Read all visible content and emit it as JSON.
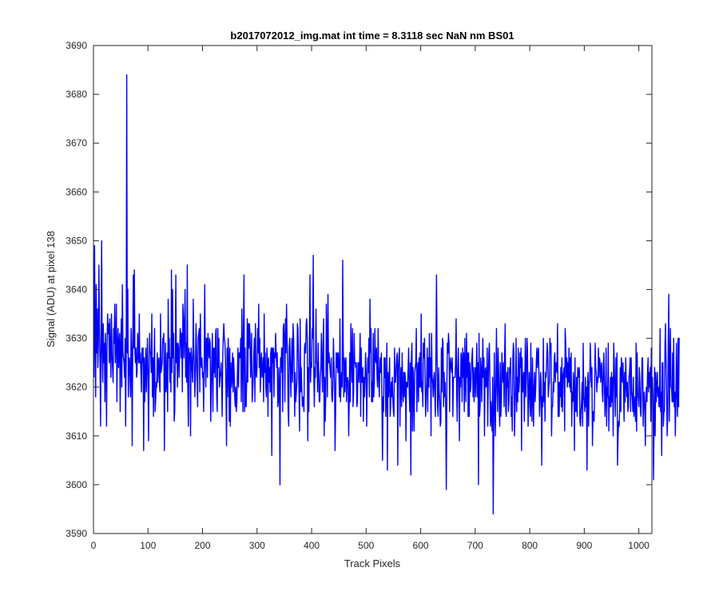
{
  "chart_data": {
    "type": "line",
    "title": "b2017072012_img.mat int time = 8.3118 sec  NaN nm BS01",
    "xlabel": "Track Pixels",
    "ylabel": "Signal (ADU) at pixel 138",
    "xlim": [
      0,
      1024
    ],
    "ylim": [
      3590,
      3690
    ],
    "xticks": [
      0,
      100,
      200,
      300,
      400,
      500,
      600,
      700,
      800,
      900,
      1000
    ],
    "yticks": [
      3590,
      3600,
      3610,
      3620,
      3630,
      3640,
      3650,
      3660,
      3670,
      3680,
      3690
    ],
    "grid": false,
    "line_color": "#0000ff",
    "series": [
      {
        "x_start": 1,
        "x_step": 1,
        "noise_level": 3624,
        "noise_sd": 6.5,
        "y": [
          3622,
          3649,
          3631,
          3618,
          3641,
          3627,
          3636,
          3624,
          3629,
          3645,
          3632,
          3625,
          3612,
          3630,
          3650,
          3627,
          3621,
          3633,
          3625,
          3629,
          3617,
          3631,
          3626,
          3612,
          3629,
          3635,
          3631,
          3633,
          3625,
          3634,
          3627,
          3622,
          3635,
          3627,
          3624,
          3621,
          3632,
          3629,
          3637,
          3625,
          3629,
          3637,
          3617,
          3628,
          3632,
          3624,
          3629,
          3631,
          3615,
          3628,
          3634,
          3620,
          3641,
          3627,
          3626,
          3625,
          3622,
          3630,
          3612,
          3626,
          3684,
          3627,
          3640,
          3618,
          3625,
          3626,
          3622,
          3618,
          3632,
          3627,
          3608,
          3628,
          3643,
          3628,
          3644,
          3627,
          3625,
          3628,
          3622,
          3623,
          3631,
          3627,
          3625,
          3635,
          3625,
          3627,
          3623,
          3619,
          3628,
          3625,
          3628,
          3607,
          3626,
          3617,
          3623,
          3628,
          3619,
          3624,
          3630,
          3622,
          3609,
          3623,
          3631,
          3627,
          3627,
          3623,
          3635,
          3618,
          3626,
          3614,
          3624,
          3632,
          3615,
          3617,
          3621,
          3620,
          3627,
          3621,
          3625,
          3626,
          3621,
          3619,
          3635,
          3623,
          3624,
          3625,
          3630,
          3629,
          3631,
          3607,
          3622,
          3629,
          3619,
          3621,
          3627,
          3615,
          3638,
          3626,
          3630,
          3621,
          3626,
          3619,
          3644,
          3623,
          3640,
          3626,
          3631,
          3613,
          3615,
          3624,
          3643,
          3625,
          3629,
          3620,
          3629,
          3628,
          3622,
          3627,
          3632,
          3631,
          3626,
          3631,
          3619,
          3637,
          3634,
          3626,
          3632,
          3640,
          3622,
          3629,
          3621,
          3645,
          3620,
          3612,
          3628,
          3625,
          3627,
          3610,
          3628,
          3626,
          3623,
          3621,
          3638,
          3628,
          3624,
          3618,
          3623,
          3633,
          3628,
          3621,
          3616,
          3630,
          3631,
          3632,
          3619,
          3635,
          3625,
          3624,
          3626,
          3622,
          3623,
          3615,
          3624,
          3641,
          3627,
          3620,
          3630,
          3630,
          3622,
          3631,
          3628,
          3626,
          3630,
          3629,
          3613,
          3619,
          3626,
          3631,
          3615,
          3628,
          3623,
          3628,
          3622,
          3631,
          3632,
          3618,
          3615,
          3632,
          3624,
          3630,
          3620,
          3622,
          3623,
          3625,
          3621,
          3614,
          3626,
          3630,
          3633,
          3630,
          3629,
          3626,
          3619,
          3608,
          3628,
          3618,
          3630,
          3625,
          3613,
          3628,
          3612,
          3625,
          3620,
          3622,
          3627,
          3619,
          3626,
          3623,
          3618,
          3616,
          3620,
          3615,
          3617,
          3623,
          3628,
          3620,
          3627,
          3627,
          3626,
          3630,
          3617,
          3636,
          3629,
          3615,
          3632,
          3643,
          3615,
          3628,
          3616,
          3616,
          3622,
          3634,
          3621,
          3633,
          3628,
          3633,
          3631,
          3622,
          3625,
          3631,
          3617,
          3619,
          3622,
          3627,
          3630,
          3617,
          3633,
          3623,
          3622,
          3624,
          3632,
          3627,
          3637,
          3624,
          3630,
          3619,
          3625,
          3627,
          3622,
          3623,
          3626,
          3617,
          3635,
          3623,
          3627,
          3620,
          3618,
          3628,
          3625,
          3614,
          3626,
          3621,
          3624,
          3619,
          3627,
          3628,
          3606,
          3628,
          3625,
          3628,
          3618,
          3627,
          3626,
          3631,
          3627,
          3624,
          3627,
          3616,
          3617,
          3624,
          3621,
          3600,
          3626,
          3623,
          3628,
          3628,
          3615,
          3632,
          3633,
          3630,
          3617,
          3634,
          3627,
          3637,
          3630,
          3625,
          3615,
          3612,
          3628,
          3630,
          3624,
          3618,
          3625,
          3630,
          3621,
          3633,
          3630,
          3624,
          3614,
          3623,
          3617,
          3619,
          3621,
          3633,
          3632,
          3625,
          3618,
          3611,
          3634,
          3619,
          3624,
          3620,
          3616,
          3618,
          3617,
          3615,
          3628,
          3629,
          3627,
          3633,
          3634,
          3630,
          3609,
          3624,
          3615,
          3629,
          3643,
          3621,
          3625,
          3624,
          3632,
          3630,
          3647,
          3623,
          3616,
          3624,
          3622,
          3636,
          3625,
          3625,
          3619,
          3629,
          3623,
          3617,
          3617,
          3622,
          3624,
          3631,
          3624,
          3619,
          3629,
          3634,
          3610,
          3622,
          3613,
          3618,
          3637,
          3629,
          3618,
          3639,
          3625,
          3627,
          3625,
          3623,
          3622,
          3626,
          3618,
          3617,
          3620,
          3630,
          3625,
          3621,
          3607,
          3615,
          3627,
          3624,
          3627,
          3623,
          3627,
          3623,
          3618,
          3634,
          3617,
          3621,
          3623,
          3620,
          3646,
          3629,
          3618,
          3626,
          3619,
          3625,
          3626,
          3617,
          3621,
          3622,
          3621,
          3610,
          3617,
          3627,
          3617,
          3633,
          3626,
          3621,
          3632,
          3616,
          3619,
          3631,
          3625,
          3625,
          3624,
          3625,
          3616,
          3617,
          3625,
          3625,
          3621,
          3625,
          3631,
          3614,
          3628,
          3621,
          3621,
          3624,
          3613,
          3622,
          3618,
          3622,
          3627,
          3623,
          3612,
          3620,
          3626,
          3623,
          3630,
          3618,
          3638,
          3627,
          3632,
          3617,
          3621,
          3617,
          3631,
          3618,
          3621,
          3632,
          3626,
          3625,
          3628,
          3622,
          3620,
          3632,
          3623,
          3618,
          3623,
          3626,
          3623,
          3627,
          3616,
          3605,
          3618,
          3615,
          3626,
          3622,
          3626,
          3614,
          3619,
          3629,
          3603,
          3623,
          3618,
          3621,
          3626,
          3614,
          3616,
          3621,
          3618,
          3622,
          3617,
          3615,
          3614,
          3628,
          3621,
          3621,
          3624,
          3626,
          3627,
          3604,
          3624,
          3626,
          3628,
          3612,
          3621,
          3624,
          3616,
          3627,
          3620,
          3617,
          3623,
          3618,
          3623,
          3622,
          3609,
          3621,
          3620,
          3620,
          3624,
          3628,
          3619,
          3615,
          3625,
          3602,
          3626,
          3629,
          3611,
          3624,
          3620,
          3611,
          3623,
          3624,
          3625,
          3632,
          3615,
          3622,
          3625,
          3617,
          3626,
          3620,
          3627,
          3620,
          3635,
          3619,
          3621,
          3616,
          3629,
          3626,
          3630,
          3623,
          3614,
          3617,
          3621,
          3628,
          3615,
          3626,
          3620,
          3631,
          3622,
          3626,
          3610,
          3631,
          3622,
          3621,
          3618,
          3622,
          3623,
          3618,
          3614,
          3627,
          3643,
          3628,
          3616,
          3614,
          3624,
          3619,
          3617,
          3612,
          3613,
          3628,
          3619,
          3630,
          3629,
          3616,
          3623,
          3618,
          3621,
          3614,
          3599,
          3620,
          3629,
          3627,
          3631,
          3629,
          3615,
          3624,
          3626,
          3624,
          3623,
          3626,
          3614,
          3622,
          3622,
          3622,
          3622,
          3625,
          3634,
          3619,
          3613,
          3624,
          3628,
          3621,
          3609,
          3622,
          3620,
          3627,
          3626,
          3617,
          3628,
          3622,
          3627,
          3615,
          3630,
          3622,
          3617,
          3631,
          3622,
          3627,
          3614,
          3627,
          3614,
          3625,
          3619,
          3620,
          3624,
          3626,
          3628,
          3618,
          3624,
          3617,
          3622,
          3624,
          3618,
          3624,
          3629,
          3618,
          3625,
          3600,
          3631,
          3614,
          3616,
          3626,
          3624,
          3617,
          3623,
          3630,
          3622,
          3626,
          3610,
          3623,
          3624,
          3620,
          3621,
          3628,
          3612,
          3621,
          3627,
          3629,
          3621,
          3612,
          3617,
          3614,
          3611,
          3622,
          3594,
          3611,
          3627,
          3616,
          3610,
          3622,
          3632,
          3620,
          3615,
          3628,
          3623,
          3616,
          3612,
          3625,
          3614,
          3617,
          3627,
          3623,
          3621,
          3625,
          3616,
          3627,
          3633,
          3615,
          3614,
          3623,
          3620,
          3624,
          3615,
          3617,
          3624,
          3623,
          3626,
          3614,
          3618,
          3611,
          3626,
          3629,
          3627,
          3610,
          3615,
          3620,
          3630,
          3615,
          3622,
          3617,
          3628,
          3619,
          3621,
          3627,
          3624,
          3628,
          3607,
          3626,
          3619,
          3621,
          3623,
          3613,
          3622,
          3630,
          3618,
          3623,
          3630,
          3627,
          3612,
          3617,
          3623,
          3619,
          3614,
          3629,
          3616,
          3613,
          3626,
          3619,
          3612,
          3620,
          3623,
          3617,
          3620,
          3625,
          3628,
          3624,
          3627,
          3628,
          3622,
          3614,
          3617,
          3623,
          3621,
          3604,
          3618,
          3616,
          3630,
          3617,
          3621,
          3613,
          3623,
          3622,
          3625,
          3629,
          3627,
          3618,
          3620,
          3621,
          3630,
          3627,
          3629,
          3610,
          3616,
          3616,
          3621,
          3619,
          3626,
          3627,
          3621,
          3625,
          3625,
          3623,
          3633,
          3614,
          3621,
          3614,
          3621,
          3618,
          3624,
          3616,
          3626,
          3615,
          3622,
          3623,
          3624,
          3611,
          3632,
          3629,
          3622,
          3626,
          3620,
          3625,
          3621,
          3628,
          3620,
          3626,
          3619,
          3627,
          3612,
          3619,
          3617,
          3623,
          3620,
          3607,
          3626,
          3615,
          3615,
          3622,
          3614,
          3624,
          3623,
          3622,
          3624,
          3613,
          3612,
          3615,
          3617,
          3621,
          3612,
          3629,
          3618,
          3617,
          3615,
          3622,
          3616,
          3620,
          3603,
          3621,
          3623,
          3612,
          3621,
          3621,
          3629,
          3625,
          3620,
          3624,
          3608,
          3615,
          3615,
          3613,
          3619,
          3629,
          3624,
          3623,
          3619,
          3622,
          3621,
          3628,
          3622,
          3626,
          3625,
          3621,
          3624,
          3625,
          3619,
          3617,
          3624,
          3627,
          3620,
          3614,
          3618,
          3628,
          3612,
          3620,
          3618,
          3629,
          3611,
          3618,
          3616,
          3622,
          3616,
          3623,
          3617,
          3622,
          3610,
          3629,
          3625,
          3619,
          3614,
          3626,
          3618,
          3627,
          3604,
          3610,
          3613,
          3612,
          3616,
          3624,
          3615,
          3626,
          3624,
          3621,
          3625,
          3620,
          3613,
          3623,
          3617,
          3626,
          3621,
          3618,
          3621,
          3615,
          3616,
          3622,
          3623,
          3626,
          3615,
          3626,
          3619,
          3618,
          3615,
          3622,
          3614,
          3616,
          3618,
          3613,
          3629,
          3611,
          3627,
          3618,
          3618,
          3616,
          3624,
          3621,
          3615,
          3614,
          3620,
          3626,
          3626,
          3612,
          3618,
          3619,
          3615,
          3608,
          3618,
          3620,
          3617,
          3623,
          3626,
          3619,
          3623,
          3620,
          3624,
          3613,
          3628,
          3620,
          3622,
          3618,
          3601,
          3613,
          3624,
          3610,
          3623,
          3617,
          3620,
          3623,
          3618,
          3620,
          3616,
          3616,
          3632,
          3615,
          3619,
          3606,
          3625,
          3625,
          3612,
          3615,
          3615,
          3629,
          3633,
          3625,
          3619,
          3610,
          3614,
          3630,
          3639,
          3613,
          3624,
          3632,
          3620,
          3620,
          3617,
          3627,
          3617,
          3630,
          3616,
          3619,
          3610,
          3617,
          3629,
          3619,
          3614,
          3630,
          3616,
          3630,
          3630
        ]
      }
    ]
  }
}
